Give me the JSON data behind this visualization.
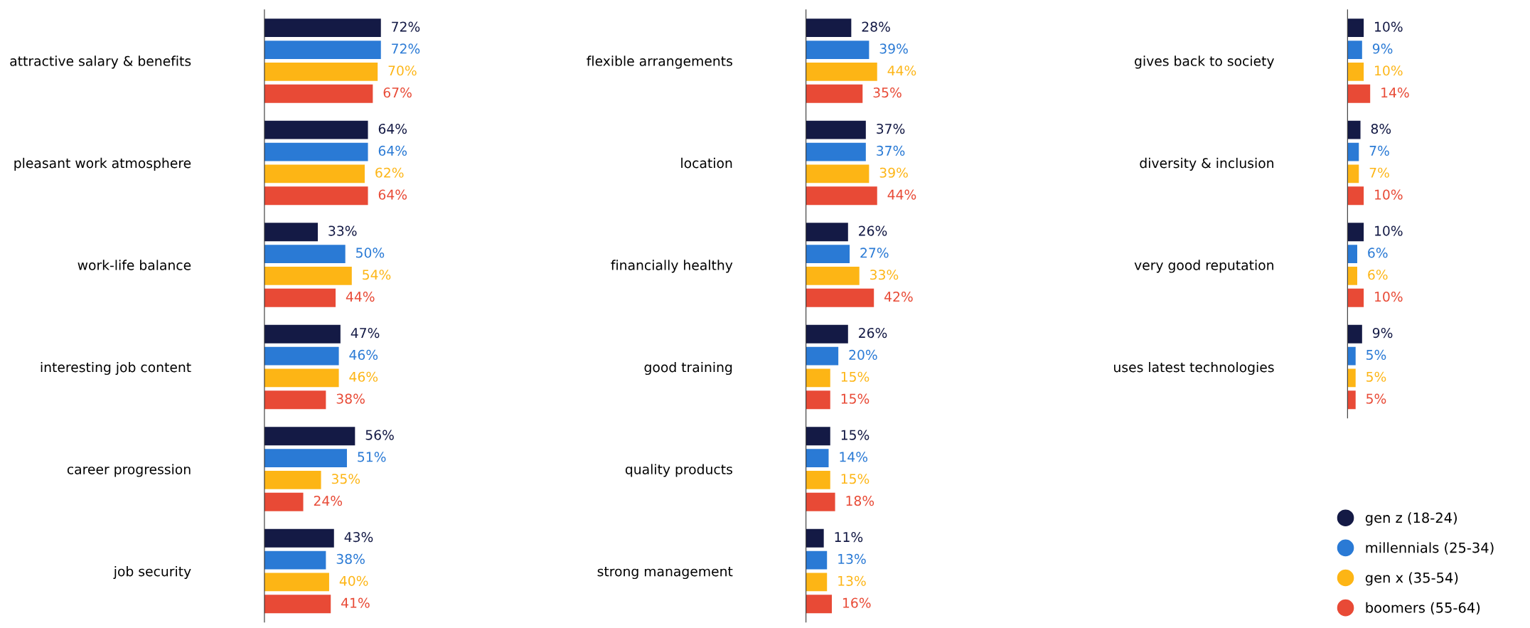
{
  "chart_data": [
    {
      "type": "bar",
      "orientation": "horizontal",
      "tick_labels": "y",
      "categories": [
        "attractive salary & benefits",
        "pleasant work atmosphere",
        "work-life balance",
        "interesting job content",
        "career progression",
        "job security"
      ],
      "series": [
        {
          "color": "#141a45",
          "values": [
            72,
            64,
            33,
            47,
            56,
            43
          ],
          "value_labels": [
            "72%",
            "64%",
            "33%",
            "47%",
            "56%",
            "43%"
          ]
        },
        {
          "color": "#2a7ad5",
          "values": [
            72,
            64,
            50,
            46,
            51,
            38
          ],
          "value_labels": [
            "72%",
            "64%",
            "50%",
            "46%",
            "51%",
            "38%"
          ]
        },
        {
          "color": "#fdb515",
          "values": [
            70,
            62,
            54,
            46,
            35,
            40
          ],
          "value_labels": [
            "70%",
            "62%",
            "54%",
            "46%",
            "35%",
            "40%"
          ]
        },
        {
          "color": "#e84a36",
          "values": [
            67,
            64,
            44,
            38,
            24,
            41
          ],
          "value_labels": [
            "67%",
            "64%",
            "44%",
            "38%",
            "24%",
            "41%"
          ]
        }
      ]
    },
    {
      "type": "bar",
      "orientation": "horizontal",
      "tick_labels": "y",
      "categories": [
        "flexible arrangements",
        "location",
        "financially healthy",
        "good training",
        "quality products",
        "strong management"
      ],
      "series": [
        {
          "color": "#141a45",
          "values": [
            28,
            37,
            26,
            26,
            15,
            11
          ],
          "value_labels": [
            "28%",
            "37%",
            "26%",
            "26%",
            "15%",
            "11%"
          ]
        },
        {
          "color": "#2a7ad5",
          "values": [
            39,
            37,
            27,
            20,
            14,
            13
          ],
          "value_labels": [
            "39%",
            "37%",
            "27%",
            "20%",
            "14%",
            "13%"
          ]
        },
        {
          "color": "#fdb515",
          "values": [
            44,
            39,
            33,
            15,
            15,
            13
          ],
          "value_labels": [
            "44%",
            "39%",
            "33%",
            "15%",
            "15%",
            "13%"
          ]
        },
        {
          "color": "#e84a36",
          "values": [
            35,
            44,
            42,
            15,
            18,
            16
          ],
          "value_labels": [
            "35%",
            "44%",
            "42%",
            "15%",
            "18%",
            "16%"
          ]
        }
      ]
    },
    {
      "type": "bar",
      "orientation": "horizontal",
      "tick_labels": "y",
      "legend": "bottom right",
      "categories": [
        "gives back to society",
        "diversity & inclusion",
        "very good reputation",
        "uses latest technologies"
      ],
      "series": [
        {
          "name": "gen z (18-24)",
          "color": "#141a45",
          "values": [
            10,
            8,
            10,
            9
          ],
          "value_labels": [
            "10%",
            "8%",
            "10%",
            "9%"
          ]
        },
        {
          "name": "millennials (25-34)",
          "color": "#2a7ad5",
          "values": [
            9,
            7,
            6,
            5
          ],
          "value_labels": [
            "9%",
            "7%",
            "6%",
            "5%"
          ]
        },
        {
          "name": "gen x (35-54)",
          "color": "#fdb515",
          "values": [
            10,
            7,
            6,
            5
          ],
          "value_labels": [
            "10%",
            "7%",
            "6%",
            "5%"
          ]
        },
        {
          "name": "boomers (55-64)",
          "color": "#e84a36",
          "values": [
            14,
            10,
            10,
            5
          ],
          "value_labels": [
            "14%",
            "10%",
            "10%",
            "5%"
          ]
        }
      ]
    }
  ]
}
